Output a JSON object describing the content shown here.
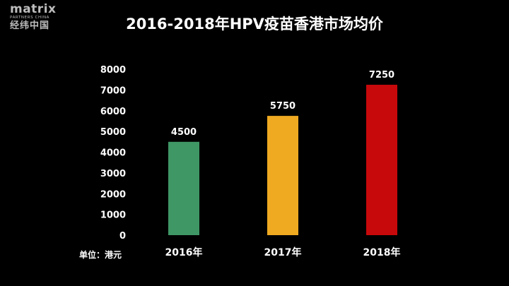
{
  "logo": {
    "brand": "matrix",
    "sub": "PARTNERS CHINA",
    "cn": "经纬中国"
  },
  "chart_data": {
    "type": "bar",
    "title": "2016-2018年HPV疫苗香港市场均价",
    "ylabel": "单位：港元",
    "categories": [
      "2016年",
      "2017年",
      "2018年"
    ],
    "values": [
      4500,
      5750,
      7250
    ],
    "colors": [
      "#3f9766",
      "#efaa21",
      "#c8090c"
    ],
    "ylim": [
      0,
      8000
    ],
    "yticks": [
      0,
      1000,
      2000,
      3000,
      4000,
      5000,
      6000,
      7000,
      8000
    ],
    "data_labels": [
      "4500",
      "5750",
      "7250"
    ],
    "grid": false,
    "legend": "none"
  }
}
